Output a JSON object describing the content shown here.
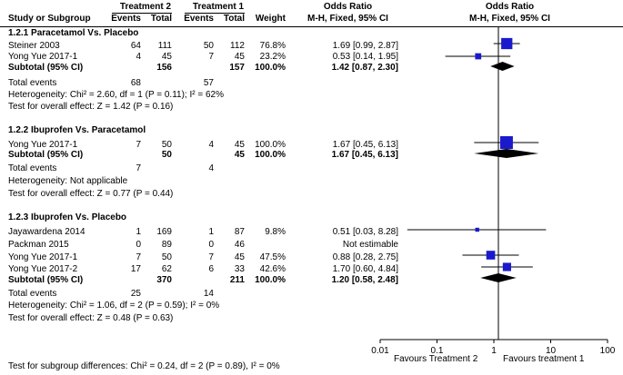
{
  "header": {
    "group1": "Treatment 2",
    "group2": "Treatment 1",
    "study": "Study or Subgroup",
    "events1": "Events",
    "total1": "Total",
    "events2": "Events",
    "total2": "Total",
    "weight": "Weight",
    "or_title": "Odds Ratio",
    "or_method": "M-H, Fixed, 95% CI",
    "plot_title": "Odds Ratio",
    "plot_method": "M-H, Fixed, 95% CI"
  },
  "subgroups": [
    {
      "title": "1.2.1 Paracetamol Vs. Placebo",
      "studies": [
        {
          "name": "Steiner 2003",
          "e1": "64",
          "t1": "111",
          "e2": "50",
          "t2": "112",
          "weight": "76.8%",
          "ci": "1.69 [0.99, 2.87]"
        },
        {
          "name": "Yong Yue 2017-1",
          "e1": "4",
          "t1": "45",
          "e2": "7",
          "t2": "45",
          "weight": "23.2%",
          "ci": "0.53 [0.14, 1.95]"
        }
      ],
      "subtotal": {
        "label": "Subtotal (95% CI)",
        "t1": "156",
        "t2": "157",
        "weight": "100.0%",
        "ci": "1.42 [0.87, 2.30]"
      },
      "total_events": {
        "label": "Total events",
        "e1": "68",
        "e2": "57"
      },
      "heterogeneity": "Heterogeneity: Chi² = 2.60, df = 1 (P = 0.11); I² = 62%",
      "overall": "Test for overall effect: Z = 1.42 (P = 0.16)"
    },
    {
      "title": "1.2.2 Ibuprofen Vs. Paracetamol",
      "studies": [
        {
          "name": "Yong Yue 2017-1",
          "e1": "7",
          "t1": "50",
          "e2": "4",
          "t2": "45",
          "weight": "100.0%",
          "ci": "1.67 [0.45, 6.13]"
        }
      ],
      "subtotal": {
        "label": "Subtotal (95% CI)",
        "t1": "50",
        "t2": "45",
        "weight": "100.0%",
        "ci": "1.67 [0.45, 6.13]"
      },
      "total_events": {
        "label": "Total events",
        "e1": "7",
        "e2": "4"
      },
      "heterogeneity": "Heterogeneity: Not applicable",
      "overall": "Test for overall effect: Z = 0.77 (P = 0.44)"
    },
    {
      "title": "1.2.3 Ibuprofen Vs. Placebo",
      "studies": [
        {
          "name": "Jayawardena 2014",
          "e1": "1",
          "t1": "169",
          "e2": "1",
          "t2": "87",
          "weight": "9.8%",
          "ci": "0.51 [0.03, 8.28]"
        },
        {
          "name": "Packman 2015",
          "e1": "0",
          "t1": "89",
          "e2": "0",
          "t2": "46",
          "weight": "",
          "ci": "Not estimable"
        },
        {
          "name": "Yong Yue 2017-1",
          "e1": "7",
          "t1": "50",
          "e2": "7",
          "t2": "45",
          "weight": "47.5%",
          "ci": "0.88 [0.28, 2.75]"
        },
        {
          "name": "Yong Yue 2017-2",
          "e1": "17",
          "t1": "62",
          "e2": "6",
          "t2": "33",
          "weight": "42.6%",
          "ci": "1.70 [0.60, 4.84]"
        }
      ],
      "subtotal": {
        "label": "Subtotal (95% CI)",
        "t1": "370",
        "t2": "211",
        "weight": "100.0%",
        "ci": "1.20 [0.58, 2.48]"
      },
      "total_events": {
        "label": "Total events",
        "e1": "25",
        "e2": "14"
      },
      "heterogeneity": "Heterogeneity: Chi² = 1.06, df = 2 (P = 0.59); I² = 0%",
      "overall": "Test for overall effect: Z = 0.48 (P = 0.63)"
    }
  ],
  "subgroup_test": "Test for subgroup differences: Chi² = 0.24, df = 2 (P = 0.89), I² = 0%",
  "colors": {
    "marker": "#1a1acc",
    "line": "#000000"
  },
  "chart_data": {
    "type": "forest",
    "scale": "log",
    "xlim": [
      0.01,
      100
    ],
    "ticks": [
      0.01,
      0.1,
      1,
      10,
      100
    ],
    "tick_labels": [
      "0.01",
      "0.1",
      "1",
      "10",
      "100"
    ],
    "left_label": "Favours Treatment 2",
    "right_label": "Favours treatment 1",
    "series": [
      {
        "name": "Steiner 2003",
        "or": 1.69,
        "lo": 0.99,
        "hi": 2.87,
        "weight": 76.8
      },
      {
        "name": "Yong Yue 2017-1",
        "or": 0.53,
        "lo": 0.14,
        "hi": 1.95,
        "weight": 23.2
      },
      {
        "name": "Subtotal 1.2.1",
        "or": 1.42,
        "lo": 0.87,
        "hi": 2.3,
        "diamond": true
      },
      {
        "name": "Yong Yue 2017-1",
        "or": 1.67,
        "lo": 0.45,
        "hi": 6.13,
        "weight": 100.0
      },
      {
        "name": "Subtotal 1.2.2",
        "or": 1.67,
        "lo": 0.45,
        "hi": 6.13,
        "diamond": true
      },
      {
        "name": "Jayawardena 2014",
        "or": 0.51,
        "lo": 0.03,
        "hi": 8.28,
        "weight": 9.8
      },
      {
        "name": "Yong Yue 2017-1",
        "or": 0.88,
        "lo": 0.28,
        "hi": 2.75,
        "weight": 47.5
      },
      {
        "name": "Yong Yue 2017-2",
        "or": 1.7,
        "lo": 0.6,
        "hi": 4.84,
        "weight": 42.6
      },
      {
        "name": "Subtotal 1.2.3",
        "or": 1.2,
        "lo": 0.58,
        "hi": 2.48,
        "diamond": true
      }
    ]
  }
}
